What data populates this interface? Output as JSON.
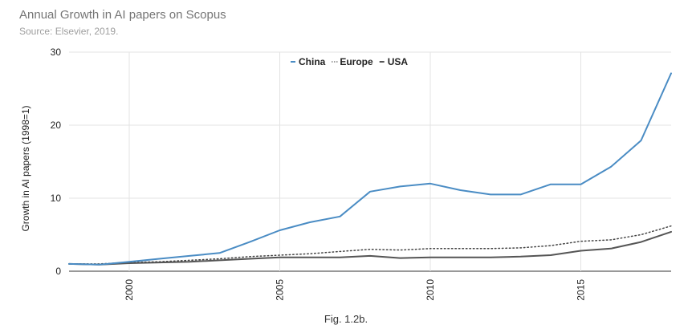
{
  "caption": "Fig. 1.2b.",
  "chart_data": {
    "type": "line",
    "title": "Annual Growth in AI papers on Scopus",
    "subtitle": "Source: Elsevier, 2019.",
    "xlabel": "",
    "ylabel": "Growth in AI papers (1998=1)",
    "xlim": [
      1998,
      2018
    ],
    "ylim": [
      0,
      30
    ],
    "xticks": [
      2000,
      2005,
      2010,
      2015
    ],
    "yticks": [
      0,
      10,
      20,
      30
    ],
    "grid": true,
    "legend_position": "top-center",
    "x": [
      1998,
      1999,
      2000,
      2001,
      2002,
      2003,
      2004,
      2005,
      2006,
      2007,
      2008,
      2009,
      2010,
      2011,
      2012,
      2013,
      2014,
      2015,
      2016,
      2017,
      2018
    ],
    "series": [
      {
        "name": "China",
        "color": "#4a8cc4",
        "style": "solid",
        "values": [
          1.0,
          0.9,
          1.3,
          1.7,
          2.1,
          2.5,
          4.0,
          5.6,
          6.7,
          7.5,
          10.9,
          11.6,
          12.0,
          11.1,
          10.5,
          10.5,
          11.9,
          11.9,
          14.3,
          17.9,
          27.1
        ]
      },
      {
        "name": "Europe",
        "color": "#444444",
        "style": "dotted",
        "values": [
          1.0,
          1.0,
          1.2,
          1.3,
          1.5,
          1.7,
          2.0,
          2.2,
          2.4,
          2.7,
          3.0,
          2.9,
          3.1,
          3.1,
          3.1,
          3.2,
          3.5,
          4.1,
          4.3,
          5.0,
          6.2
        ]
      },
      {
        "name": "USA",
        "color": "#555555",
        "style": "solid",
        "values": [
          1.0,
          0.9,
          1.1,
          1.2,
          1.3,
          1.5,
          1.7,
          1.9,
          1.9,
          1.9,
          2.1,
          1.8,
          1.9,
          1.9,
          1.9,
          2.0,
          2.2,
          2.8,
          3.1,
          4.0,
          5.4
        ]
      }
    ]
  }
}
